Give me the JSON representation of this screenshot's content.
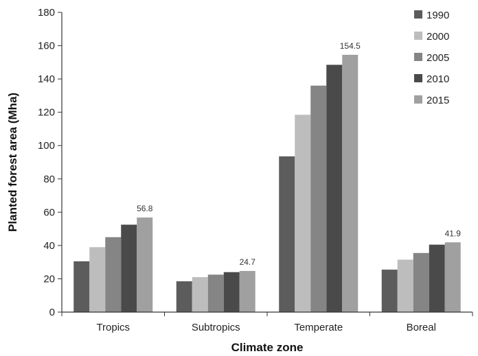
{
  "chart_data": {
    "type": "bar",
    "title": "",
    "xlabel": "Climate zone",
    "ylabel": "Planted forest area (Mha)",
    "ylim": [
      0,
      180
    ],
    "yticks": [
      "0",
      "20",
      "40",
      "60",
      "80",
      "100",
      "120",
      "140",
      "160",
      "180"
    ],
    "categories": [
      "Tropics",
      "Subtropics",
      "Temperate",
      "Boreal"
    ],
    "grid": false,
    "legend_position": "top-right",
    "series": [
      {
        "name": "1990",
        "color": "#5c5c5c",
        "values": [
          30.5,
          18.5,
          93.5,
          25.5
        ]
      },
      {
        "name": "2000",
        "color": "#bdbdbd",
        "values": [
          39.0,
          21.0,
          118.5,
          31.5
        ]
      },
      {
        "name": "2005",
        "color": "#858585",
        "values": [
          45.0,
          22.5,
          136.0,
          35.5
        ]
      },
      {
        "name": "2010",
        "color": "#4a4a4a",
        "values": [
          52.5,
          24.0,
          148.5,
          40.5
        ]
      },
      {
        "name": "2015",
        "color": "#a0a0a0",
        "values": [
          56.8,
          24.7,
          154.5,
          41.9
        ]
      }
    ],
    "data_labels": [
      {
        "category_index": 0,
        "series_index": 4,
        "text": "56.8"
      },
      {
        "category_index": 1,
        "series_index": 4,
        "text": "24.7"
      },
      {
        "category_index": 2,
        "series_index": 4,
        "text": "154.5"
      },
      {
        "category_index": 3,
        "series_index": 4,
        "text": "41.9"
      }
    ]
  }
}
